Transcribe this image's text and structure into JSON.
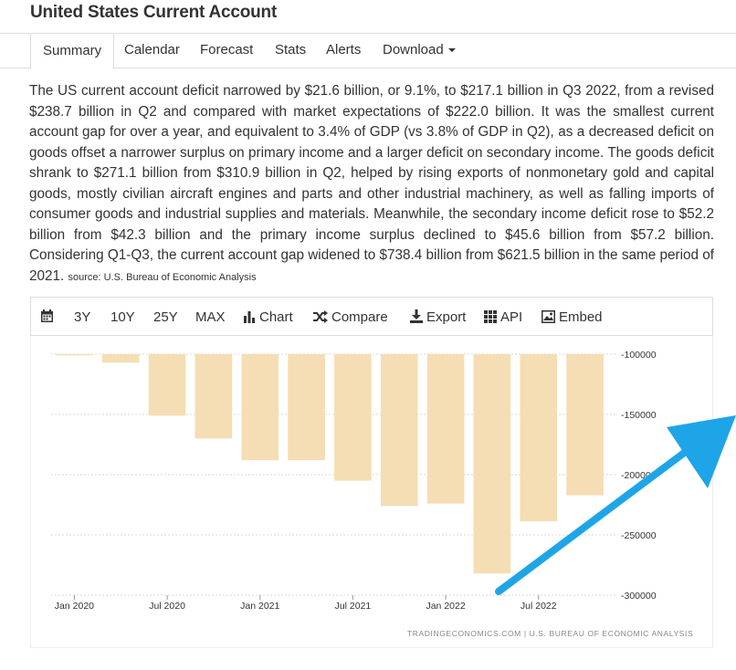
{
  "page": {
    "title": "United States Current Account"
  },
  "tabs": [
    {
      "label": "Summary"
    },
    {
      "label": "Calendar"
    },
    {
      "label": "Forecast"
    },
    {
      "label": "Stats"
    },
    {
      "label": "Alerts"
    },
    {
      "label": "Download"
    }
  ],
  "summary": {
    "text": "The US current account deficit narrowed by $21.6 billion, or 9.1%, to $217.1 billion in Q3 2022, from a revised $238.7 billion in Q2 and compared with market expectations of $222.0 billion. It was the smallest current account gap for over a year, and equivalent to 3.4% of GDP (vs 3.8% of GDP in Q2), as a decreased deficit on goods offset a narrower surplus on primary income and a larger deficit on secondary income. The goods deficit shrank to $271.1 billion from $310.9 billion in Q2, helped by rising exports of nonmonetary gold and capital goods, mostly civilian aircraft engines and parts and other industrial machinery, as well as falling imports of consumer goods and industrial supplies and materials. Meanwhile, the secondary income deficit rose to $52.2 billion from $42.3 billion and the primary income surplus declined to $45.6 billion from $57.2 billion. Considering Q1-Q3, the current account gap widened to $738.4 billion from $621.5 billion in the same period of 2021.",
    "source": "source: U.S. Bureau of Economic Analysis"
  },
  "toolbar": {
    "calendar_icon": "calendar-icon",
    "range_3y": "3Y",
    "range_10y": "10Y",
    "range_25y": "25Y",
    "range_max": "MAX",
    "chart": "Chart",
    "compare": "Compare",
    "export": "Export",
    "api": "API",
    "embed": "Embed"
  },
  "chart_data": {
    "type": "bar",
    "categories": [
      "Jan 2020",
      "Apr 2020",
      "Jul 2020",
      "Oct 2020",
      "Jan 2021",
      "Apr 2021",
      "Jul 2021",
      "Oct 2021",
      "Jan 2022",
      "Apr 2022",
      "Jul 2022",
      "Oct 2022"
    ],
    "values": [
      -101000,
      -107000,
      -151000,
      -170000,
      -188000,
      -188000,
      -205000,
      -226000,
      -224000,
      -282000,
      -238700,
      -217100
    ],
    "x_tick_labels": [
      "Jan 2020",
      "Jul 2020",
      "Jan 2021",
      "Jul 2021",
      "Jan 2022",
      "Jul 2022"
    ],
    "y_ticks": [
      -100000,
      -150000,
      -200000,
      -250000,
      -300000
    ],
    "y_tick_labels": [
      "-100000",
      "-150000",
      "-200000",
      "-250000",
      "-300000"
    ],
    "ylim": [
      -300000,
      -100000
    ],
    "bar_color": "#f5deb3",
    "grid": true,
    "credit": "TRADINGECONOMICS.COM  |  U.S. BUREAU OF ECONOMIC ANALYSIS"
  },
  "overlay": {
    "arrow_color": "#1ea5e8"
  }
}
